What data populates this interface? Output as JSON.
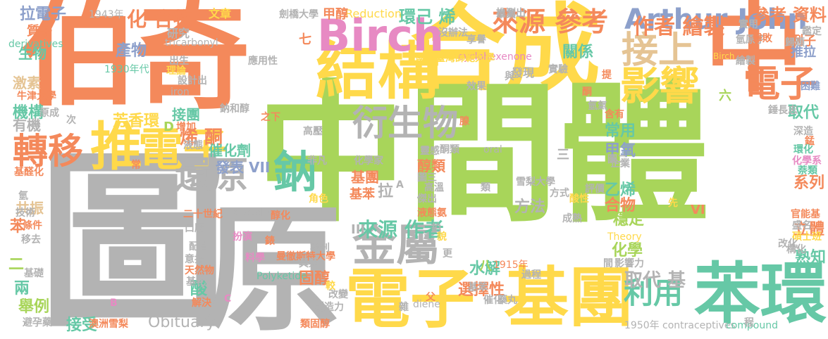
{
  "palette": {
    "orange": "#f4895b",
    "yellow": "#ffd94a",
    "green": "#a8d55a",
    "gray": "#b3b3b3",
    "teal": "#66c8a6",
    "blue": "#8da0cb",
    "pink": "#e78ac3",
    "tan": "#e5c494"
  },
  "words": [
    {
      "id": "w-bo",
      "text": "伯",
      "color": "orange"
    },
    {
      "id": "w-qi",
      "text": "奇",
      "color": "orange"
    },
    {
      "id": "w-hecheng",
      "text": "合成",
      "color": "yellow"
    },
    {
      "id": "w-zhong-top",
      "text": "中",
      "color": "orange"
    },
    {
      "id": "w-zhongjianti",
      "text": "中間體",
      "color": "green"
    },
    {
      "id": "w-tu",
      "text": "圖",
      "color": "gray"
    },
    {
      "id": "w-yuan",
      "text": "原",
      "color": "gray"
    },
    {
      "id": "w-benhuan",
      "text": "苯環",
      "color": "teal"
    },
    {
      "id": "w-jituan",
      "text": "基團",
      "color": "yellow"
    },
    {
      "id": "w-dianzi-bottom",
      "text": "電子",
      "color": "yellow"
    },
    {
      "id": "w-jiegou",
      "text": "結構",
      "color": "yellow"
    },
    {
      "id": "w-birch",
      "text": "Birch",
      "color": "pink"
    },
    {
      "id": "w-arthur",
      "text": "Arthur John",
      "color": "blue"
    },
    {
      "id": "w-cankao-ziliao",
      "text": "參考 資料",
      "color": "orange"
    },
    {
      "id": "w-jieshang",
      "text": "接上",
      "color": "tan"
    },
    {
      "id": "w-yingxiang",
      "text": "影響",
      "color": "yellow"
    },
    {
      "id": "w-dianzi-right",
      "text": "電子",
      "color": "orange"
    },
    {
      "id": "w-zhuanyi",
      "text": "轉移",
      "color": "orange"
    },
    {
      "id": "w-tui",
      "text": "推",
      "color": "yellow"
    },
    {
      "id": "w-dianzi-mid",
      "text": "電子",
      "color": "yellow"
    },
    {
      "id": "w-yanshengwu",
      "text": "衍生物",
      "color": "gray"
    },
    {
      "id": "w-huanyuan",
      "text": "還原",
      "color": "gray"
    },
    {
      "id": "w-na",
      "text": "鈉",
      "color": "teal"
    },
    {
      "id": "w-jinshu",
      "text": "金屬",
      "color": "gray"
    },
    {
      "id": "w-laiyuan-cankao",
      "text": "來源 參考",
      "color": "orange"
    },
    {
      "id": "w-zuozhe-huizhi",
      "text": "作者 繪製",
      "color": "orange"
    },
    {
      "id": "w-hehewu",
      "text": "化 合物",
      "color": "orange"
    },
    {
      "id": "w-chanwu",
      "text": "產物",
      "color": "blue"
    },
    {
      "id": "w-fangxianghuan",
      "text": "芳香環",
      "color": "yellow"
    },
    {
      "id": "w-lidianzi",
      "text": "拉電子",
      "color": "blue"
    },
    {
      "id": "w-huanjixi",
      "text": "環己 烯",
      "color": "teal"
    },
    {
      "id": "w-reduction",
      "text": "Reduction",
      "color": "yellow"
    },
    {
      "id": "w-jiachun",
      "text": "甲醇",
      "color": "orange"
    },
    {
      "id": "w-guanxi",
      "text": "關係",
      "color": "teal"
    },
    {
      "id": "w-xitong",
      "text": "烯 酮",
      "color": "orange"
    },
    {
      "id": "w-jieshou-tuan",
      "text": "接團",
      "color": "teal"
    },
    {
      "id": "w-jitu",
      "text": "機構",
      "color": "teal"
    },
    {
      "id": "w-cuihuaji",
      "text": "催化劑",
      "color": "teal"
    },
    {
      "id": "w-fabiao",
      "text": "發表 VII",
      "color": "blue"
    },
    {
      "id": "w-liyong",
      "text": "利用",
      "color": "teal"
    },
    {
      "id": "w-qudai-ji",
      "text": "取代 基",
      "color": "gray"
    },
    {
      "id": "w-laiyuan-zuozhe",
      "text": "來源 作者",
      "color": "teal"
    },
    {
      "id": "w-jilei",
      "text": "醇類",
      "color": "orange"
    },
    {
      "id": "w-jituan-small",
      "text": "基團",
      "color": "orange"
    },
    {
      "id": "w-jiben",
      "text": "基苯",
      "color": "orange"
    },
    {
      "id": "w-la",
      "text": "拉",
      "color": "gray"
    },
    {
      "id": "w-fangfa",
      "text": "方法",
      "color": "gray"
    },
    {
      "id": "w-shuijie",
      "text": "水解",
      "color": "teal"
    },
    {
      "id": "w-xuanzexing",
      "text": "選擇性",
      "color": "orange"
    },
    {
      "id": "w-guchun",
      "text": "固醇",
      "color": "orange"
    },
    {
      "id": "w-huaxue",
      "text": "化學",
      "color": "green"
    },
    {
      "id": "w-wending",
      "text": "穩定",
      "color": "green"
    },
    {
      "id": "w-hewu",
      "text": "合物",
      "color": "orange"
    },
    {
      "id": "w-yixi",
      "text": "乙烯",
      "color": "teal"
    },
    {
      "id": "w-jiayang",
      "text": "甲氧",
      "color": "blue"
    },
    {
      "id": "w-changyong",
      "text": "常用",
      "color": "teal"
    },
    {
      "id": "w-quda",
      "text": "取代",
      "color": "teal"
    },
    {
      "id": "w-xilie",
      "text": "系列",
      "color": "orange"
    },
    {
      "id": "w-liti",
      "text": "立體",
      "color": "orange"
    },
    {
      "id": "w-shuzhi",
      "text": "熟知",
      "color": "teal"
    },
    {
      "id": "w-obituary",
      "text": "Obituary",
      "color": "gray"
    },
    {
      "id": "w-jieshou",
      "text": "接受",
      "color": "teal"
    },
    {
      "id": "w-suan",
      "text": "酸",
      "color": "teal"
    },
    {
      "id": "w-liang",
      "text": "兩",
      "color": "teal"
    },
    {
      "id": "w-ben",
      "text": "苯",
      "color": "orange"
    },
    {
      "id": "w-jujie",
      "text": "舉例",
      "color": "green"
    },
    {
      "id": "w-gongzhen",
      "text": "共振",
      "color": "tan"
    },
    {
      "id": "w-er",
      "text": "二",
      "color": "green"
    },
    {
      "id": "w-shengwu",
      "text": "生物",
      "color": "teal"
    },
    {
      "id": "w-zhizi",
      "text": "質子",
      "color": "orange"
    },
    {
      "id": "w-jisu",
      "text": "激素",
      "color": "tan"
    },
    {
      "id": "w-youji",
      "text": "有機",
      "color": "gray"
    },
    {
      "id": "w-yanjiu",
      "text": "研究",
      "color": "gray"
    },
    {
      "id": "w-wenzhang",
      "text": "文章",
      "color": "yellow"
    },
    {
      "id": "w-tuichuchu",
      "text": "推測出",
      "color": "gray"
    },
    {
      "id": "w-lizi",
      "text": "例子",
      "color": "orange"
    },
    {
      "id": "w-tuila",
      "text": "推拉",
      "color": "blue"
    },
    {
      "id": "w-1943",
      "text": "1943年",
      "color": "gray"
    },
    {
      "id": "w-derivatives",
      "text": "derivatives",
      "color": "teal"
    },
    {
      "id": "w-tricarbonyl",
      "text": "tricarbonyl",
      "color": "gray"
    },
    {
      "id": "w-cyclohexenone",
      "text": "cyclohexenone",
      "color": "pink"
    },
    {
      "id": "w-alicyclic",
      "text": "alicyclic",
      "color": "gray"
    },
    {
      "id": "w-polyketide",
      "text": "Polyketide",
      "color": "teal"
    },
    {
      "id": "w-oral",
      "text": "oral",
      "color": "gray"
    },
    {
      "id": "w-theory",
      "text": "Theory",
      "color": "yellow"
    },
    {
      "id": "w-diene",
      "text": "diene",
      "color": "gray"
    },
    {
      "id": "w-contraceptives",
      "text": "contraceptives",
      "color": "gray"
    },
    {
      "id": "w-compound",
      "text": "compound",
      "color": "teal"
    },
    {
      "id": "w-1950",
      "text": "1950年",
      "color": "gray"
    },
    {
      "id": "w-1915",
      "text": "1915年",
      "color": "orange"
    },
    {
      "id": "w-1930",
      "text": "1930年代",
      "color": "teal"
    },
    {
      "id": "w-iron",
      "text": "iron",
      "color": "gray"
    },
    {
      "id": "w-birch-small",
      "text": "Birch",
      "color": "yellow"
    },
    {
      "id": "w-vi",
      "text": "VI",
      "color": "orange"
    },
    {
      "id": "w-iii",
      "text": "III",
      "color": "gray"
    },
    {
      "id": "w-d",
      "text": "D",
      "color": "green"
    },
    {
      "id": "w-ba",
      "text": "八",
      "color": "green"
    },
    {
      "id": "w-liu",
      "text": "六",
      "color": "green"
    },
    {
      "id": "w-qi-small",
      "text": "七",
      "color": "orange"
    },
    {
      "id": "w-san",
      "text": "三",
      "color": "gray"
    },
    {
      "id": "w-jianzhi",
      "text": "繪製",
      "color": "gray"
    },
    {
      "id": "w-jiadingxing",
      "text": "鑑定",
      "color": "gray"
    },
    {
      "id": "w-qingyuanzi",
      "text": "氫原子",
      "color": "gray"
    },
    {
      "id": "w-mangan",
      "text": "錳",
      "color": "orange"
    },
    {
      "id": "w-huanhua",
      "text": "環化",
      "color": "teal"
    },
    {
      "id": "w-huaxuejia",
      "text": "化學系",
      "color": "pink"
    },
    {
      "id": "w-shenlei",
      "text": "萘類",
      "color": "teal"
    },
    {
      "id": "w-guanneng",
      "text": "官能基",
      "color": "orange"
    },
    {
      "id": "w-shengming",
      "text": "盛名",
      "color": "gray"
    },
    {
      "id": "w-boshi",
      "text": "碩士班",
      "color": "yellow"
    },
    {
      "id": "w-gouhua",
      "text": "構化",
      "color": "gray"
    },
    {
      "id": "w-guiwu",
      "text": "歸順",
      "color": "gray"
    },
    {
      "id": "w-kunnan",
      "text": "困難",
      "color": "blue"
    },
    {
      "id": "w-shendao",
      "text": "深造",
      "color": "gray"
    },
    {
      "id": "w-suizhang",
      "text": "錘長志",
      "color": "gray"
    },
    {
      "id": "w-zhengdie",
      "text": "實驗",
      "color": "gray"
    },
    {
      "id": "w-shiyong",
      "text": "實用",
      "color": "gray"
    },
    {
      "id": "w-shoushi",
      "text": "擊敗",
      "color": "orange"
    },
    {
      "id": "w-bisheng",
      "text": "畢業",
      "color": "gray"
    },
    {
      "id": "w-meiyoubanfa",
      "text": "沒辦法",
      "color": "gray"
    },
    {
      "id": "w-xiangyou",
      "text": "享譽",
      "color": "gray"
    },
    {
      "id": "w-guoli",
      "text": "國立臺灣師範大學",
      "color": "yellow"
    },
    {
      "id": "w-juqiao",
      "text": "劍橋大學",
      "color": "gray"
    },
    {
      "id": "w-niujin",
      "text": "牛津大學",
      "color": "orange"
    },
    {
      "id": "w-manchesite",
      "text": "曼徹斯特大學",
      "color": "orange"
    },
    {
      "id": "w-xueli",
      "text": "雪梨大學",
      "color": "gray"
    },
    {
      "id": "w-aozhouxuezhi",
      "text": "澳洲雪梨",
      "color": "orange"
    },
    {
      "id": "w-yingyongxing",
      "text": "應用性",
      "color": "gray"
    },
    {
      "id": "w-shejichu",
      "text": "設計出",
      "color": "gray"
    },
    {
      "id": "w-lilun",
      "text": "理論",
      "color": "yellow"
    },
    {
      "id": "w-chusheng",
      "text": "出生",
      "color": "gray"
    },
    {
      "id": "w-nahechun",
      "text": "鈉和醇",
      "color": "gray"
    },
    {
      "id": "w-zhixia",
      "text": "之下",
      "color": "orange"
    },
    {
      "id": "w-zengjia",
      "text": "增加",
      "color": "orange"
    },
    {
      "id": "w-gaoya",
      "text": "高壓",
      "color": "gray"
    },
    {
      "id": "w-yuanliao",
      "text": "液態",
      "color": "gray"
    },
    {
      "id": "w-feifan",
      "text": "非凡",
      "color": "gray"
    },
    {
      "id": "w-huaxuejia2",
      "text": "化學家",
      "color": "gray"
    },
    {
      "id": "w-tongtuan",
      "text": "酮類",
      "color": "gray"
    },
    {
      "id": "w-juese",
      "text": "角色",
      "color": "yellow"
    },
    {
      "id": "w-tusan",
      "text": "圖三",
      "color": "gray"
    },
    {
      "id": "w-gaowen",
      "text": "高溫",
      "color": "gray"
    },
    {
      "id": "w-jiedai",
      "text": "傑出",
      "color": "gray"
    },
    {
      "id": "w-lei",
      "text": "類",
      "color": "gray"
    },
    {
      "id": "w-yeli",
      "text": "液態氨",
      "color": "orange"
    },
    {
      "id": "w-xiaoguo",
      "text": "效果",
      "color": "gray"
    },
    {
      "id": "w-faxian",
      "text": "發現",
      "color": "gray"
    },
    {
      "id": "w-tuer",
      "text": "圖二",
      "color": "gray"
    },
    {
      "id": "w-fangshi",
      "text": "方式",
      "color": "gray"
    },
    {
      "id": "w-suanxing",
      "text": "酸性",
      "color": "yellow"
    },
    {
      "id": "w-chengshu",
      "text": "成熟",
      "color": "gray"
    },
    {
      "id": "w-xian",
      "text": "先",
      "color": "yellow"
    },
    {
      "id": "w-jiben2",
      "text": "基苯",
      "color": "gray"
    },
    {
      "id": "w-yaowan",
      "text": "藥丸",
      "color": "gray"
    },
    {
      "id": "w-guocheng",
      "text": "過程",
      "color": "gray"
    },
    {
      "id": "w-cuihua",
      "text": "催化",
      "color": "gray"
    },
    {
      "id": "w-chuangzaoli",
      "text": "創造力",
      "color": "gray"
    },
    {
      "id": "w-leigu",
      "text": "類固醇",
      "color": "orange"
    },
    {
      "id": "w-gaibian",
      "text": "改變",
      "color": "gray"
    },
    {
      "id": "w-fu",
      "text": "父",
      "color": "orange"
    },
    {
      "id": "w-tianranwu",
      "text": "天然物",
      "color": "orange"
    },
    {
      "id": "w-yihou",
      "text": "意指",
      "color": "gray"
    },
    {
      "id": "w-peihe",
      "text": "配合",
      "color": "gray"
    },
    {
      "id": "w-jiben3",
      "text": "基化",
      "color": "gray"
    },
    {
      "id": "w-jiejue",
      "text": "解決",
      "color": "orange"
    },
    {
      "id": "w-kouzhi",
      "text": "口服",
      "color": "gray"
    },
    {
      "id": "w-ershishiji",
      "text": "二十世紀",
      "color": "orange"
    },
    {
      "id": "w-lianghua",
      "text": "醇化",
      "color": "orange"
    },
    {
      "id": "w-liaoxue",
      "text": "料學",
      "color": "pink"
    },
    {
      "id": "w-bianxing",
      "text": "扮演",
      "color": "pink"
    },
    {
      "id": "w-juli",
      "text": "具類",
      "color": "gray"
    },
    {
      "id": "w-qikan",
      "text": "期刊",
      "color": "gray"
    },
    {
      "id": "w-geng",
      "text": "更",
      "color": "gray"
    },
    {
      "id": "w-bi",
      "text": "鉑",
      "color": "gray"
    },
    {
      "id": "w-pingli",
      "text": "評價",
      "color": "gray"
    },
    {
      "id": "w-yu",
      "text": "與",
      "color": "gray"
    },
    {
      "id": "w-yingxiangli",
      "text": "影響力",
      "color": "gray"
    },
    {
      "id": "w-jian",
      "text": "間",
      "color": "gray"
    },
    {
      "id": "w-qidai",
      "text": "企業",
      "color": "gray"
    },
    {
      "id": "w-jishu",
      "text": "技術",
      "color": "gray"
    },
    {
      "id": "w-yiqu",
      "text": "移去",
      "color": "gray"
    },
    {
      "id": "w-jichu",
      "text": "基礎",
      "color": "gray"
    },
    {
      "id": "w-tiaojian",
      "text": "條件",
      "color": "orange"
    },
    {
      "id": "w-qing",
      "text": "氫",
      "color": "gray"
    },
    {
      "id": "w-jiaohua",
      "text": "基醛化",
      "color": "orange"
    },
    {
      "id": "w-ci",
      "text": "次",
      "color": "gray"
    },
    {
      "id": "w-yuanchengjian",
      "text": "原成",
      "color": "gray"
    },
    {
      "id": "w-bizhan",
      "text": "避孕藥",
      "color": "gray"
    },
    {
      "id": "w-qing2",
      "text": "氫氣",
      "color": "gray"
    },
    {
      "id": "w-hanyou",
      "text": "含有",
      "color": "orange"
    },
    {
      "id": "w-xian2",
      "text": "腺",
      "color": "orange"
    },
    {
      "id": "w-ti",
      "text": "提",
      "color": "orange"
    },
    {
      "id": "w-tong",
      "text": "酮",
      "color": "orange"
    },
    {
      "id": "w-chang",
      "text": "常",
      "color": "orange"
    },
    {
      "id": "w-c",
      "text": "C",
      "color": "pink"
    },
    {
      "id": "w-b",
      "text": "B",
      "color": "pink"
    },
    {
      "id": "w-a",
      "text": "A",
      "color": "gray"
    },
    {
      "id": "w-liang2",
      "text": "靈感",
      "color": "gray"
    },
    {
      "id": "w-jiao",
      "text": "較",
      "color": "yellow"
    },
    {
      "id": "w-mao",
      "text": "貌",
      "color": "yellow"
    },
    {
      "id": "w-lian",
      "text": "錶",
      "color": "orange"
    },
    {
      "id": "w-gaihua",
      "text": "改化",
      "color": "gray"
    },
    {
      "id": "w-cheng",
      "text": "程",
      "color": "gray"
    },
    {
      "id": "w-jiexin",
      "text": "雜",
      "color": "gray"
    }
  ]
}
